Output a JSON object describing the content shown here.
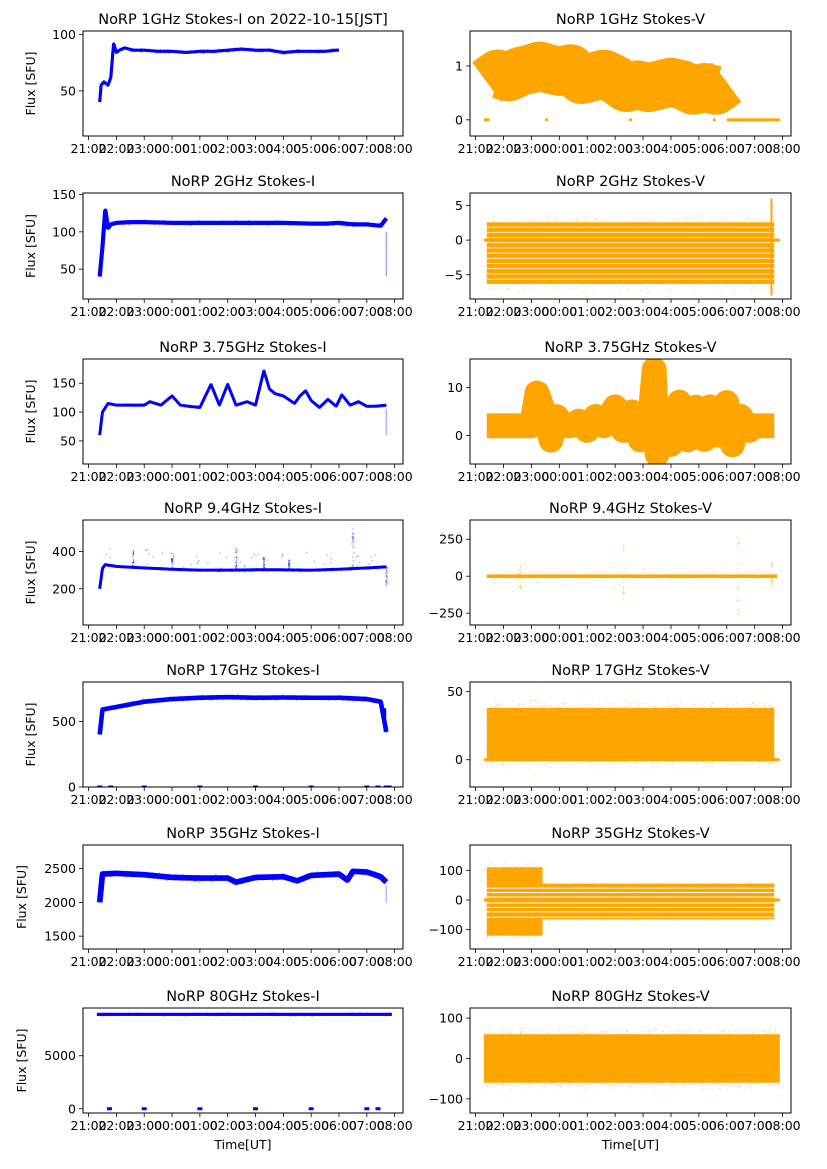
{
  "figure": {
    "xlabel": "Time[UT]",
    "ylabel": "Flux [SFU]",
    "colors": {
      "stokes_i": "#0000ff",
      "stokes_v": "#ffa500",
      "axes": "#000000"
    }
  },
  "chart_data": [
    {
      "type": "scatter",
      "panel": "1GHz-I",
      "title": "NoRP 1GHz Stokes-I on 2022-10-15[JST]",
      "xlabel": "",
      "ylabel": "Flux [SFU]",
      "xticks": [
        "21:00",
        "22:00",
        "23:00",
        "00:00",
        "01:00",
        "02:00",
        "03:00",
        "04:00",
        "05:00",
        "06:00",
        "07:00",
        "08:00"
      ],
      "xlim_hours": [
        -0.2,
        11.3
      ],
      "ylim": [
        10,
        103
      ],
      "yticks": [
        50,
        100
      ],
      "color": "#0000ff",
      "series": [
        {
          "name": "Stokes-I",
          "x_hours": [
            0.4,
            0.45,
            0.55,
            0.7,
            0.8,
            0.9,
            1.0,
            1.1,
            1.3,
            1.6,
            2.0,
            2.5,
            3.0,
            3.5,
            4.0,
            4.5,
            5.0,
            5.5,
            6.0,
            6.5,
            7.0,
            7.5,
            8.0,
            8.5,
            8.9,
            9.0
          ],
          "y": [
            40,
            55,
            58,
            55,
            62,
            92,
            84,
            86,
            88,
            86,
            86,
            85,
            85,
            84,
            85,
            85,
            86,
            87,
            86,
            86,
            84,
            85,
            85,
            85,
            86,
            86
          ],
          "spread": 2
        }
      ]
    },
    {
      "type": "scatter",
      "panel": "1GHz-V",
      "title": "NoRP 1GHz Stokes-V",
      "xlabel": "",
      "ylabel": "",
      "xticks": [
        "21:00",
        "22:00",
        "23:00",
        "00:00",
        "01:00",
        "02:00",
        "03:00",
        "04:00",
        "05:00",
        "06:00",
        "07:00",
        "08:00"
      ],
      "xlim_hours": [
        -0.2,
        11.3
      ],
      "ylim": [
        -0.3,
        1.65
      ],
      "yticks": [
        0,
        1
      ],
      "color": "#ffa500",
      "series": [
        {
          "name": "Stokes-V",
          "x_hours": [
            0.4,
            0.8,
            1.2,
            1.6,
            2.0,
            2.3,
            2.6,
            3.0,
            3.4,
            3.8,
            4.2,
            4.6,
            5.0,
            5.4,
            5.8,
            6.2,
            6.6,
            7.0,
            7.4,
            7.8,
            8.2,
            8.6,
            9.0
          ],
          "y": [
            0.7,
            0.85,
            0.8,
            0.9,
            0.95,
            1.0,
            0.95,
            0.9,
            0.95,
            0.75,
            0.8,
            0.85,
            0.75,
            0.6,
            0.65,
            0.6,
            0.65,
            0.7,
            0.65,
            0.55,
            0.6,
            0.55,
            0.7
          ],
          "spread": 0.35
        }
      ],
      "zero_segments_hours": [
        [
          0.3,
          0.5
        ],
        [
          2.5,
          2.6
        ],
        [
          5.5,
          5.6
        ],
        [
          8.5,
          8.6
        ],
        [
          9.0,
          10.9
        ]
      ]
    },
    {
      "type": "scatter",
      "panel": "2GHz-I",
      "title": "NoRP 2GHz Stokes-I",
      "xlabel": "",
      "ylabel": "Flux [SFU]",
      "xticks": [
        "21:00",
        "22:00",
        "23:00",
        "00:00",
        "01:00",
        "02:00",
        "03:00",
        "04:00",
        "05:00",
        "06:00",
        "07:00",
        "08:00"
      ],
      "xlim_hours": [
        -0.2,
        11.3
      ],
      "ylim": [
        10,
        152
      ],
      "yticks": [
        50,
        100,
        150
      ],
      "color": "#0000ff",
      "series": [
        {
          "name": "Stokes-I",
          "x_hours": [
            0.4,
            0.5,
            0.6,
            0.7,
            0.8,
            1.0,
            1.5,
            2.0,
            3.0,
            4.0,
            5.0,
            6.0,
            7.0,
            8.0,
            8.5,
            9.0,
            9.5,
            10.0,
            10.5,
            10.7
          ],
          "y": [
            40,
            80,
            130,
            105,
            110,
            112,
            113,
            113,
            112,
            112,
            112,
            112,
            112,
            111,
            111,
            112,
            110,
            110,
            108,
            118
          ],
          "spread": 4
        },
        {
          "name": "tail",
          "x_hours": [
            10.7
          ],
          "y": [
            40
          ]
        }
      ]
    },
    {
      "type": "scatter",
      "panel": "2GHz-V",
      "title": "NoRP 2GHz Stokes-V",
      "xlabel": "",
      "ylabel": "",
      "xticks": [
        "21:00",
        "22:00",
        "23:00",
        "00:00",
        "01:00",
        "02:00",
        "03:00",
        "04:00",
        "05:00",
        "06:00",
        "07:00",
        "08:00"
      ],
      "xlim_hours": [
        -0.2,
        11.3
      ],
      "ylim": [
        -8.5,
        6.8
      ],
      "yticks": [
        -5,
        0,
        5
      ],
      "color": "#ffa500",
      "series": [
        {
          "name": "Stokes-V",
          "x_range_hours": [
            0.4,
            10.7
          ],
          "quantized_levels": [
            -6,
            -5.25,
            -4.5,
            -3.75,
            -3,
            -2.25,
            -1.5,
            -0.75,
            0,
            0.75,
            1.5,
            2.25
          ]
        }
      ]
    },
    {
      "type": "scatter",
      "panel": "3.75GHz-I",
      "title": "NoRP 3.75GHz Stokes-I",
      "xlabel": "",
      "ylabel": "Flux [SFU]",
      "xticks": [
        "21:00",
        "22:00",
        "23:00",
        "00:00",
        "01:00",
        "02:00",
        "03:00",
        "04:00",
        "05:00",
        "06:00",
        "07:00",
        "08:00"
      ],
      "xlim_hours": [
        -0.2,
        11.3
      ],
      "ylim": [
        10,
        192
      ],
      "yticks": [
        50,
        100,
        150
      ],
      "color": "#0000ff",
      "series": [
        {
          "name": "Stokes-I",
          "x_hours": [
            0.4,
            0.5,
            0.7,
            1.0,
            1.5,
            2.0,
            2.2,
            2.6,
            3.0,
            3.3,
            3.6,
            4.0,
            4.4,
            4.7,
            5.0,
            5.3,
            5.7,
            6.0,
            6.3,
            6.5,
            6.7,
            7.0,
            7.4,
            7.6,
            7.8,
            8.0,
            8.3,
            8.6,
            8.9,
            9.1,
            9.4,
            9.7,
            10.0,
            10.3,
            10.7
          ],
          "y": [
            60,
            100,
            115,
            112,
            112,
            112,
            118,
            112,
            128,
            112,
            110,
            108,
            148,
            112,
            148,
            112,
            118,
            112,
            172,
            140,
            132,
            128,
            115,
            128,
            137,
            120,
            108,
            122,
            110,
            130,
            112,
            118,
            110,
            110,
            112
          ],
          "spread": 3
        }
      ]
    },
    {
      "type": "scatter",
      "panel": "3.75GHz-V",
      "title": "NoRP 3.75GHz Stokes-V",
      "xlabel": "",
      "ylabel": "",
      "xticks": [
        "21:00",
        "22:00",
        "23:00",
        "00:00",
        "01:00",
        "02:00",
        "03:00",
        "04:00",
        "05:00",
        "06:00",
        "07:00",
        "08:00"
      ],
      "xlim_hours": [
        -0.2,
        11.3
      ],
      "ylim": [
        -6,
        16
      ],
      "yticks": [
        0,
        10
      ],
      "color": "#ffa500",
      "series": [
        {
          "name": "Stokes-V",
          "x_hours": [
            0.4,
            1.0,
            2.0,
            2.2,
            2.5,
            2.7,
            2.9,
            3.1,
            3.4,
            3.7,
            4.0,
            4.3,
            4.6,
            5.0,
            5.3,
            5.6,
            5.9,
            6.2,
            6.4,
            6.5,
            6.6,
            6.8,
            7.0,
            7.3,
            7.6,
            7.9,
            8.2,
            8.4,
            8.7,
            9.0,
            9.2,
            9.5,
            9.8,
            10.0,
            10.3,
            10.7
          ],
          "y": [
            2,
            2,
            2,
            9,
            4,
            -1,
            4,
            2,
            2,
            3,
            1,
            4,
            2,
            6,
            1,
            5,
            -1,
            1,
            14,
            -4,
            0,
            3,
            -2,
            7,
            -1,
            6,
            -1,
            6,
            0,
            7,
            -2,
            4,
            1,
            2,
            2,
            2
          ],
          "spread": 2
        }
      ]
    },
    {
      "type": "scatter",
      "panel": "9.4GHz-I",
      "title": "NoRP 9.4GHz Stokes-I",
      "xlabel": "",
      "ylabel": "Flux [SFU]",
      "xticks": [
        "21:00",
        "22:00",
        "23:00",
        "00:00",
        "01:00",
        "02:00",
        "03:00",
        "04:00",
        "05:00",
        "06:00",
        "07:00",
        "08:00"
      ],
      "xlim_hours": [
        -0.2,
        11.3
      ],
      "ylim": [
        5,
        570
      ],
      "yticks": [
        200,
        400
      ],
      "color": "#0000ff",
      "series": [
        {
          "name": "Stokes-I",
          "x_hours": [
            0.4,
            0.5,
            0.6,
            1.0,
            2.0,
            3.0,
            4.0,
            5.0,
            6.0,
            7.0,
            8.0,
            9.0,
            10.0,
            10.7
          ],
          "y": [
            200,
            310,
            330,
            320,
            312,
            305,
            300,
            300,
            302,
            302,
            300,
            305,
            312,
            318
          ],
          "spread": 10
        }
      ],
      "spikes_hours": [
        [
          1.6,
          390
        ],
        [
          3.0,
          360
        ],
        [
          5.3,
          420
        ],
        [
          6.3,
          370
        ],
        [
          7.2,
          360
        ],
        [
          9.5,
          530
        ],
        [
          10.7,
          200
        ]
      ]
    },
    {
      "type": "scatter",
      "panel": "9.4GHz-V",
      "title": "NoRP 9.4GHz Stokes-V",
      "xlabel": "",
      "ylabel": "",
      "xticks": [
        "21:00",
        "22:00",
        "23:00",
        "00:00",
        "01:00",
        "02:00",
        "03:00",
        "04:00",
        "05:00",
        "06:00",
        "07:00",
        "08:00"
      ],
      "xlim_hours": [
        -0.2,
        11.3
      ],
      "ylim": [
        -330,
        380
      ],
      "yticks": [
        -250,
        0,
        250
      ],
      "color": "#ffa500",
      "series": [
        {
          "name": "Stokes-V",
          "x_range_hours": [
            0.4,
            10.8
          ],
          "y": 0,
          "spread": 10
        }
      ],
      "spikes_hours": [
        [
          1.6,
          80,
          -80
        ],
        [
          5.3,
          230,
          -160
        ],
        [
          9.4,
          320,
          -300
        ],
        [
          10.6,
          100,
          -60
        ]
      ]
    },
    {
      "type": "scatter",
      "panel": "17GHz-I",
      "title": "NoRP 17GHz Stokes-I",
      "xlabel": "",
      "ylabel": "Flux [SFU]",
      "xticks": [
        "21:00",
        "22:00",
        "23:00",
        "00:00",
        "01:00",
        "02:00",
        "03:00",
        "04:00",
        "05:00",
        "06:00",
        "07:00",
        "08:00"
      ],
      "xlim_hours": [
        -0.2,
        11.3
      ],
      "ylim": [
        0,
        800
      ],
      "yticks": [
        0,
        500
      ],
      "color": "#0000ff",
      "series": [
        {
          "name": "Stokes-I",
          "x_hours": [
            0.4,
            0.5,
            1.0,
            2.0,
            3.0,
            4.0,
            5.0,
            6.0,
            7.0,
            8.0,
            9.0,
            10.0,
            10.5,
            10.7
          ],
          "y": [
            400,
            590,
            610,
            650,
            670,
            680,
            685,
            680,
            682,
            680,
            680,
            670,
            650,
            420
          ],
          "spread": 25
        }
      ],
      "zero_marks_hours": [
        0.4,
        0.8,
        2.0,
        4.0,
        6.0,
        8.0,
        10.0,
        10.4,
        10.7,
        10.8
      ]
    },
    {
      "type": "scatter",
      "panel": "17GHz-V",
      "title": "NoRP 17GHz Stokes-V",
      "xlabel": "",
      "ylabel": "",
      "xticks": [
        "21:00",
        "22:00",
        "23:00",
        "00:00",
        "01:00",
        "02:00",
        "03:00",
        "04:00",
        "05:00",
        "06:00",
        "07:00",
        "08:00"
      ],
      "xlim_hours": [
        -0.2,
        11.3
      ],
      "ylim": [
        -20,
        57
      ],
      "yticks": [
        0,
        50
      ],
      "color": "#ffa500",
      "series": [
        {
          "name": "Stokes-V",
          "x_range_hours": [
            0.4,
            10.7
          ],
          "y_band": [
            0,
            38
          ],
          "spread": 8
        }
      ]
    },
    {
      "type": "scatter",
      "panel": "35GHz-I",
      "title": "NoRP 35GHz Stokes-I",
      "xlabel": "",
      "ylabel": "Flux [SFU]",
      "xticks": [
        "21:00",
        "22:00",
        "23:00",
        "00:00",
        "01:00",
        "02:00",
        "03:00",
        "04:00",
        "05:00",
        "06:00",
        "07:00",
        "08:00"
      ],
      "xlim_hours": [
        -0.2,
        11.3
      ],
      "ylim": [
        1310,
        2850
      ],
      "yticks": [
        1500,
        2000,
        2500
      ],
      "color": "#0000ff",
      "series": [
        {
          "name": "Stokes-I",
          "x_hours": [
            0.4,
            0.5,
            1.0,
            2.0,
            3.0,
            4.0,
            5.0,
            5.3,
            6.0,
            7.0,
            7.5,
            8.0,
            9.0,
            9.3,
            9.5,
            10.0,
            10.5,
            10.7
          ],
          "y": [
            2000,
            2420,
            2430,
            2410,
            2370,
            2360,
            2360,
            2300,
            2370,
            2380,
            2320,
            2400,
            2420,
            2330,
            2460,
            2450,
            2380,
            2300
          ],
          "spread": 60
        }
      ]
    },
    {
      "type": "scatter",
      "panel": "35GHz-V",
      "title": "NoRP 35GHz Stokes-V",
      "xlabel": "",
      "ylabel": "",
      "xticks": [
        "21:00",
        "22:00",
        "23:00",
        "00:00",
        "01:00",
        "02:00",
        "03:00",
        "04:00",
        "05:00",
        "06:00",
        "07:00",
        "08:00"
      ],
      "xlim_hours": [
        -0.2,
        11.3
      ],
      "ylim": [
        -165,
        185
      ],
      "yticks": [
        -100,
        0,
        100
      ],
      "color": "#ffa500",
      "series": [
        {
          "name": "Stokes-V",
          "x_range_hours": [
            0.4,
            10.7
          ],
          "early_band": {
            "x_hours": [
              0.4,
              2.4
            ],
            "y": [
              -120,
              110
            ]
          },
          "late_band": {
            "x_hours": [
              2.4,
              10.7
            ],
            "y": [
              -65,
              55
            ]
          }
        }
      ]
    },
    {
      "type": "scatter",
      "panel": "80GHz-I",
      "title": "NoRP 80GHz Stokes-I",
      "xlabel": "Time[UT]",
      "ylabel": "Flux [SFU]",
      "xticks": [
        "21:00",
        "22:00",
        "23:00",
        "00:00",
        "01:00",
        "02:00",
        "03:00",
        "04:00",
        "05:00",
        "06:00",
        "07:00",
        "08:00"
      ],
      "xlim_hours": [
        -0.2,
        11.3
      ],
      "ylim": [
        -400,
        9500
      ],
      "yticks": [
        0,
        5000
      ],
      "color": "#0000ff",
      "series": [
        {
          "name": "Stokes-I",
          "x_range_hours": [
            0.3,
            10.9
          ],
          "y": 8900,
          "spread": 120
        }
      ],
      "zero_marks_hours": [
        0.75,
        2.0,
        4.0,
        6.0,
        8.0,
        10.0,
        10.4
      ]
    },
    {
      "type": "scatter",
      "panel": "80GHz-V",
      "title": "NoRP 80GHz Stokes-V",
      "xlabel": "Time[UT]",
      "ylabel": "",
      "xticks": [
        "21:00",
        "22:00",
        "23:00",
        "00:00",
        "01:00",
        "02:00",
        "03:00",
        "04:00",
        "05:00",
        "06:00",
        "07:00",
        "08:00"
      ],
      "xlim_hours": [
        -0.2,
        11.3
      ],
      "ylim": [
        -135,
        125
      ],
      "yticks": [
        -100,
        0,
        100
      ],
      "color": "#ffa500",
      "series": [
        {
          "name": "Stokes-V",
          "x_range_hours": [
            0.3,
            10.9
          ],
          "y_band": [
            -60,
            60
          ],
          "spread": 25
        }
      ]
    }
  ]
}
